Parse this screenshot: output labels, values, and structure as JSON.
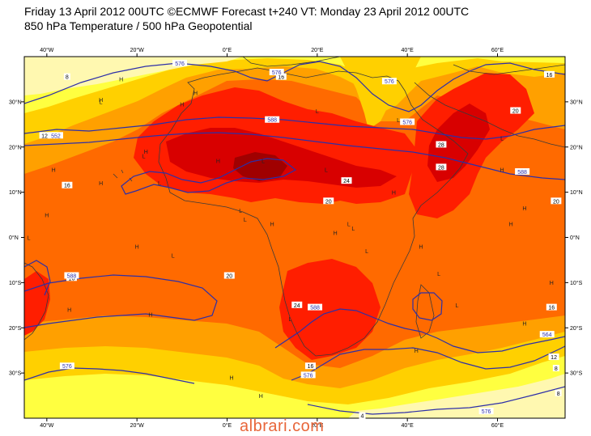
{
  "title_line1": "Friday 13 April 2012 00UTC ©ECMWF Forecast t+240 VT: Monday 23 April 2012 00UTC",
  "title_line2": "850 hPa Temperature / 500 hPa Geopotential",
  "watermark": "albrari.com",
  "colors": {
    "t_lt4": "#ffffff",
    "t_4_8": "#fff8b0",
    "t_8_12": "#ffff40",
    "t_12_16": "#ffd000",
    "t_16_20": "#ffa000",
    "t_20_24": "#ff6a00",
    "t_24_28": "#ff1e00",
    "t_28_32": "#d80000",
    "t_gt32": "#a00000",
    "contour": "#2d2fa8",
    "land": "#3a3a3a"
  },
  "axes": {
    "top_lon": [
      "40°W",
      "20°W",
      "0°E",
      "20°E",
      "40°E",
      "60°E"
    ],
    "bottom_lon": [
      "40°W",
      "20°W",
      "0°E",
      "20°E",
      "40°E",
      "60°E"
    ],
    "left_lat": [
      "30°N",
      "20°N",
      "10°N",
      "0°N",
      "10°S",
      "20°S",
      "30°S"
    ],
    "right_lat": [
      "30°N",
      "20°N",
      "10°N",
      "0°N",
      "10°S",
      "20°S",
      "30°S"
    ]
  },
  "temp_labels": [
    {
      "t": "16",
      "lon": -35.5,
      "lat": 11.5
    },
    {
      "t": "16",
      "lon": -34.5,
      "lat": -9.0
    },
    {
      "t": "20",
      "lon": 0.5,
      "lat": -8.5
    },
    {
      "t": "24",
      "lon": 26.5,
      "lat": 12.5
    },
    {
      "t": "20",
      "lon": 22.5,
      "lat": 8.0
    },
    {
      "t": "16",
      "lon": 12.0,
      "lat": 35.5
    },
    {
      "t": "16",
      "lon": 71.5,
      "lat": 36.0
    },
    {
      "t": "20",
      "lon": 64.0,
      "lat": 28.0
    },
    {
      "t": "20",
      "lon": 73.0,
      "lat": 8.0
    },
    {
      "t": "16",
      "lon": 72.0,
      "lat": -15.5
    },
    {
      "t": "12",
      "lon": 72.5,
      "lat": -26.5
    },
    {
      "t": "8",
      "lon": 73.0,
      "lat": -29.0
    },
    {
      "t": "8",
      "lon": 73.5,
      "lat": -34.5
    },
    {
      "t": "16",
      "lon": 18.5,
      "lat": -28.5
    },
    {
      "t": "4",
      "lon": 30.0,
      "lat": -39.5
    },
    {
      "t": "8",
      "lon": -35.5,
      "lat": 35.5
    },
    {
      "t": "12",
      "lon": -40.5,
      "lat": 22.5
    },
    {
      "t": "28",
      "lon": 47.5,
      "lat": 20.5
    },
    {
      "t": "28",
      "lon": 47.5,
      "lat": 15.5
    },
    {
      "t": "24",
      "lon": 15.5,
      "lat": -15.0
    }
  ],
  "geo_labels": [
    {
      "t": "552",
      "lon": -38.0,
      "lat": 22.5
    },
    {
      "t": "576",
      "lon": -10.5,
      "lat": 38.5
    },
    {
      "t": "576",
      "lon": 11.0,
      "lat": 36.5
    },
    {
      "t": "576",
      "lon": 36.0,
      "lat": 34.5
    },
    {
      "t": "588",
      "lon": 10.0,
      "lat": 26.0
    },
    {
      "t": "576",
      "lon": 40.0,
      "lat": 25.5
    },
    {
      "t": "588",
      "lon": 65.5,
      "lat": 14.5
    },
    {
      "t": "588",
      "lon": -34.5,
      "lat": -8.5
    },
    {
      "t": "588",
      "lon": 19.5,
      "lat": -15.5
    },
    {
      "t": "576",
      "lon": 18.0,
      "lat": -30.5
    },
    {
      "t": "576",
      "lon": -35.5,
      "lat": -28.5
    },
    {
      "t": "576",
      "lon": 57.5,
      "lat": -38.5
    },
    {
      "t": "564",
      "lon": 71.0,
      "lat": -21.5
    }
  ],
  "highs": [
    {
      "lon": -23.5,
      "lat": 34.5
    },
    {
      "lon": -28,
      "lat": 30
    },
    {
      "lon": -10,
      "lat": 29
    },
    {
      "lon": -38.5,
      "lat": 14.5
    },
    {
      "lon": -28,
      "lat": 11.5
    },
    {
      "lon": -40,
      "lat": 4.5
    },
    {
      "lon": -35,
      "lat": -16.5
    },
    {
      "lon": -17,
      "lat": -17.5
    },
    {
      "lon": -20,
      "lat": -2.5
    },
    {
      "lon": 37,
      "lat": 9.5
    },
    {
      "lon": 66,
      "lat": 6
    },
    {
      "lon": 43,
      "lat": -2.5
    },
    {
      "lon": 61,
      "lat": 14.5
    },
    {
      "lon": 72,
      "lat": -10.5
    },
    {
      "lon": 66,
      "lat": -19.5
    },
    {
      "lon": 1,
      "lat": -31.5
    },
    {
      "lon": 7.5,
      "lat": -35.5
    },
    {
      "lon": 42,
      "lat": -25.5
    },
    {
      "lon": -7,
      "lat": 31.5
    },
    {
      "lon": 63,
      "lat": 2.5
    },
    {
      "lon": -2,
      "lat": 16.5
    },
    {
      "lon": 10,
      "lat": 2.5
    },
    {
      "lon": 24,
      "lat": 0.5
    },
    {
      "lon": -18,
      "lat": 18.5
    }
  ],
  "lows": [
    {
      "lon": -28,
      "lat": 29.5
    },
    {
      "lon": -15,
      "lat": 11.5
    },
    {
      "lon": -44,
      "lat": -0.5
    },
    {
      "lon": -12,
      "lat": -4.5
    },
    {
      "lon": 4,
      "lat": 3.5
    },
    {
      "lon": 22,
      "lat": 14.5
    },
    {
      "lon": 8,
      "lat": 16.5
    },
    {
      "lon": 28,
      "lat": 1.5
    },
    {
      "lon": 31,
      "lat": -3.5
    },
    {
      "lon": 14,
      "lat": -18.5
    },
    {
      "lon": 3,
      "lat": 5.5
    },
    {
      "lon": 61,
      "lat": 21.5
    },
    {
      "lon": 47,
      "lat": -8.5
    },
    {
      "lon": 51,
      "lat": -15.5
    },
    {
      "lon": 27,
      "lat": 2.5
    },
    {
      "lon": -18.5,
      "lat": 17.5
    },
    {
      "lon": 38,
      "lat": 25.5
    },
    {
      "lon": 20,
      "lat": 27.5
    }
  ],
  "legend_low": "L",
  "legend_high": "H"
}
